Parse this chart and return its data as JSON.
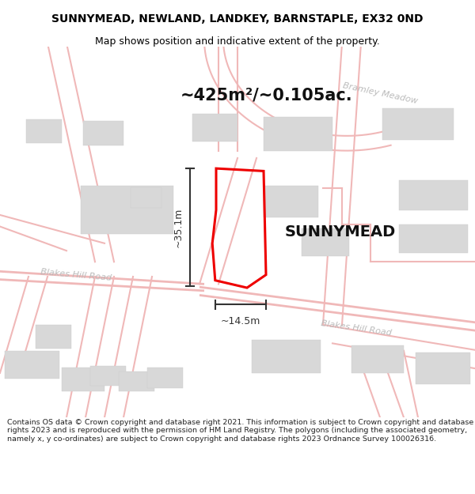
{
  "title": "SUNNYMEAD, NEWLAND, LANDKEY, BARNSTAPLE, EX32 0ND",
  "subtitle": "Map shows position and indicative extent of the property.",
  "area_label": "~425m²/~0.105ac.",
  "property_label": "SUNNYMEAD",
  "dim_vertical": "~35.1m",
  "dim_horizontal": "~14.5m",
  "road_label_left": "Blakes Hill Road",
  "road_label_right": "Blakes Hill Road",
  "road_label_upper": "Bramley Meadow",
  "footer": "Contains OS data © Crown copyright and database right 2021. This information is subject to Crown copyright and database rights 2023 and is reproduced with the permission of HM Land Registry. The polygons (including the associated geometry, namely x, y co-ordinates) are subject to Crown copyright and database rights 2023 Ordnance Survey 100026316.",
  "bg_color": "#ffffff",
  "map_bg": "#ffffff",
  "road_color": "#f0b8b8",
  "building_color": "#d8d8d8",
  "building_edge": "#cccccc",
  "property_outline_color": "#ee0000",
  "dim_line_color": "#333333",
  "road_text_color": "#bbbbbb",
  "title_color": "#000000",
  "figsize": [
    6.0,
    6.25
  ],
  "dpi": 100,
  "title_fontsize": 10,
  "subtitle_fontsize": 9,
  "area_fontsize": 15,
  "property_fontsize": 14,
  "road_fontsize": 8,
  "footer_fontsize": 6.8
}
